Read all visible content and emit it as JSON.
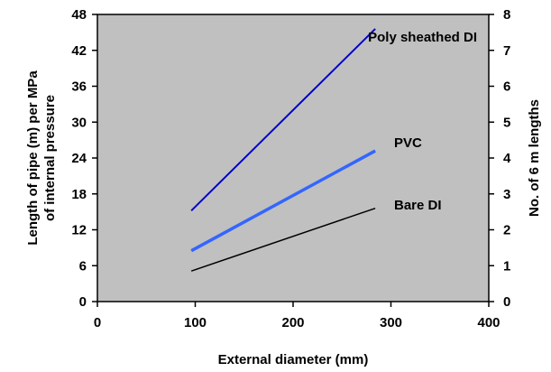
{
  "chart_data": {
    "type": "line",
    "title": "",
    "xlabel": "External diameter (mm)",
    "ylabel_lines": [
      "Length of pipe (m) per MPa",
      "of internal pressure"
    ],
    "y2label": "No. of 6 m lengths",
    "xlim": [
      0,
      400
    ],
    "ylim": [
      0,
      48
    ],
    "y2lim": [
      0,
      8
    ],
    "x_ticks": [
      "0",
      "100",
      "200",
      "300",
      "400"
    ],
    "y_ticks": [
      "0",
      "6",
      "12",
      "18",
      "24",
      "30",
      "36",
      "42",
      "48"
    ],
    "y2_ticks": [
      "0",
      "1",
      "2",
      "3",
      "4",
      "5",
      "6",
      "7",
      "8"
    ],
    "plot_background": "#c0c0c0",
    "grid": false,
    "legend": "inline labels",
    "series": [
      {
        "name": "Poly sheathed DI",
        "color": "#0000cc",
        "x": [
          96,
          284
        ],
        "y": [
          15.2,
          45.6
        ]
      },
      {
        "name": "PVC",
        "color": "#3366ff",
        "x": [
          96,
          284
        ],
        "y": [
          8.5,
          25.2
        ]
      },
      {
        "name": "Bare DI",
        "color": "#000000",
        "x": [
          96,
          284
        ],
        "y": [
          5.1,
          15.6
        ]
      }
    ]
  }
}
